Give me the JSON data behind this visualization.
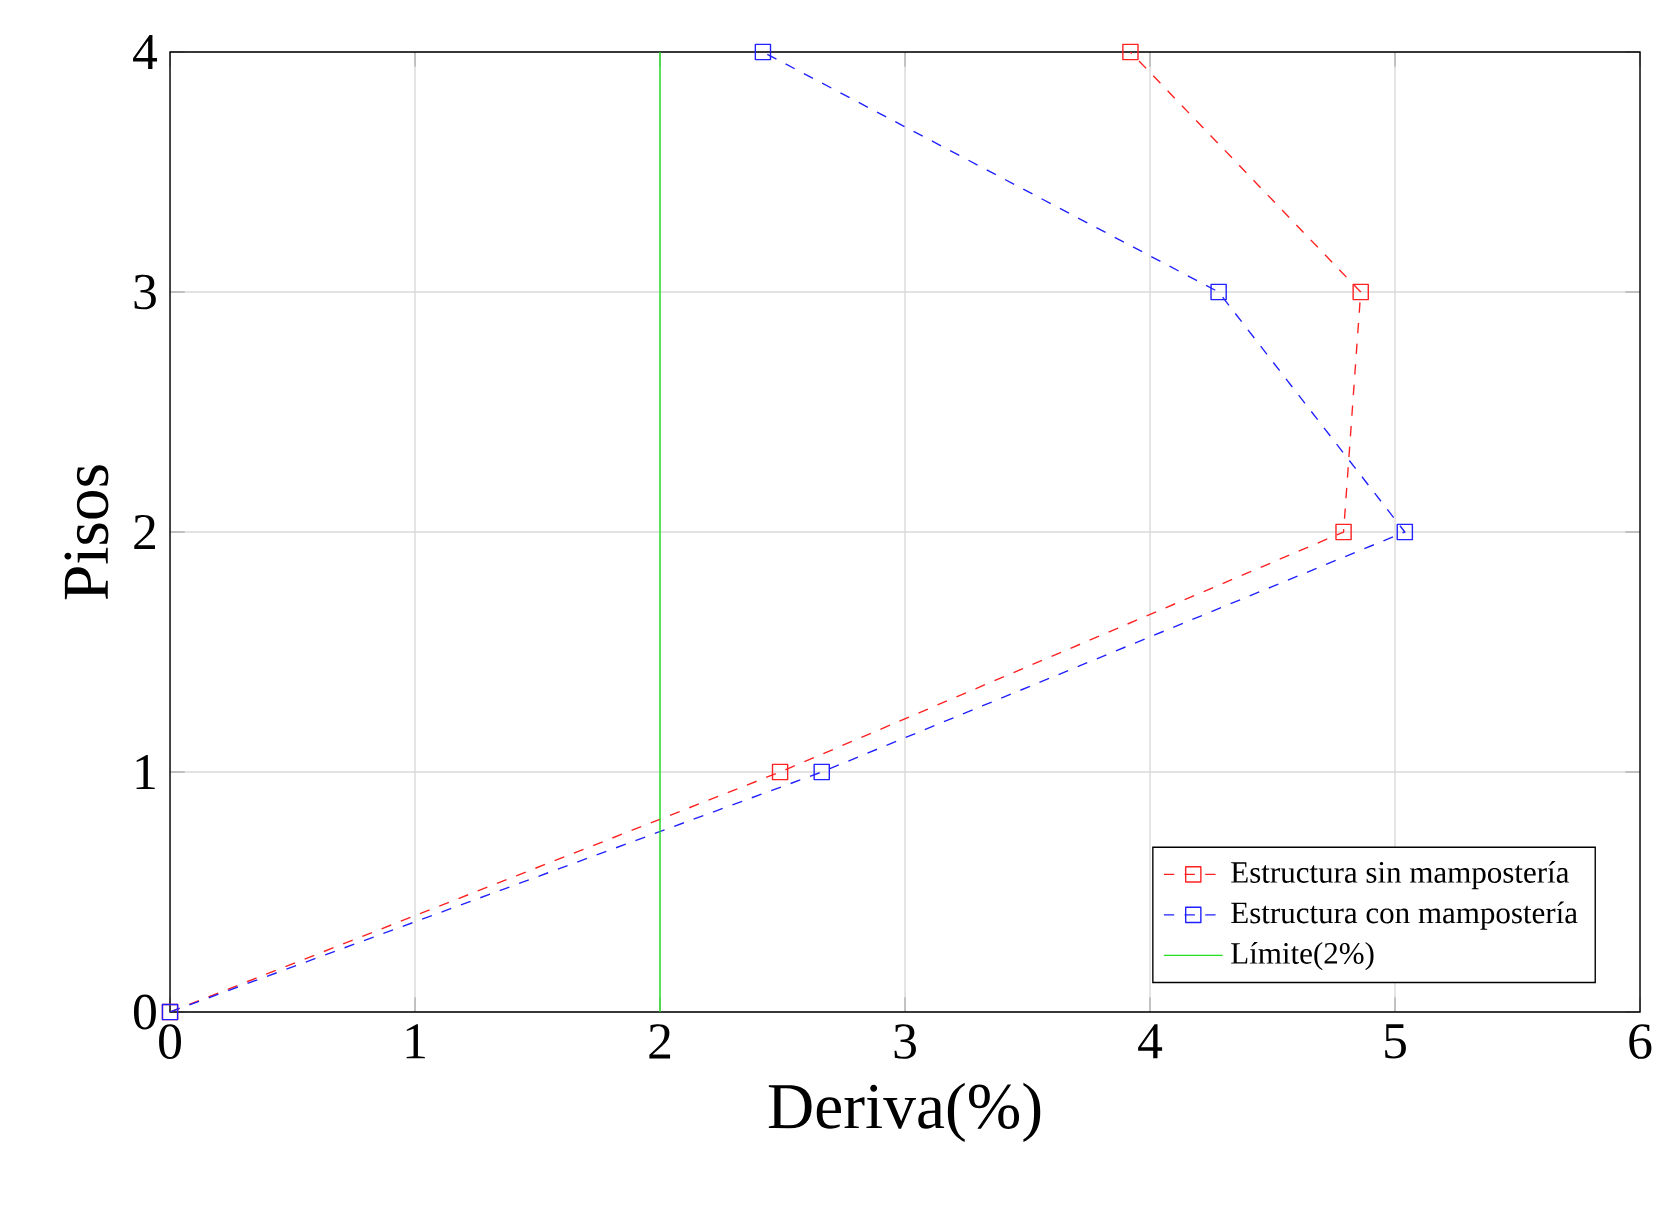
{
  "chart_data": {
    "type": "line",
    "xlabel": "Deriva(%)",
    "ylabel": "Pisos",
    "xlim": [
      0,
      6
    ],
    "ylim": [
      0,
      4
    ],
    "xticks": [
      0,
      1,
      2,
      3,
      4,
      5,
      6
    ],
    "yticks": [
      0,
      1,
      2,
      3,
      4
    ],
    "grid": true,
    "legend": "bottom right",
    "marker": "square",
    "line_style": "dashed",
    "series": [
      {
        "name": "Estructura sin mampostería",
        "color": "#ff2020",
        "x": [
          0,
          2.49,
          4.79,
          4.86,
          3.92
        ],
        "values": [
          0,
          1,
          2,
          3,
          4
        ]
      },
      {
        "name": "Estructura con mampostería",
        "color": "#2020ff",
        "x": [
          0,
          2.66,
          5.04,
          4.28,
          2.42
        ],
        "values": [
          0,
          1,
          2,
          3,
          4
        ]
      },
      {
        "name": "Límite(2%)",
        "color": "#20e020",
        "x": [
          2,
          2
        ],
        "values": [
          0,
          4
        ],
        "marker": "none",
        "line_style": "solid"
      }
    ]
  }
}
